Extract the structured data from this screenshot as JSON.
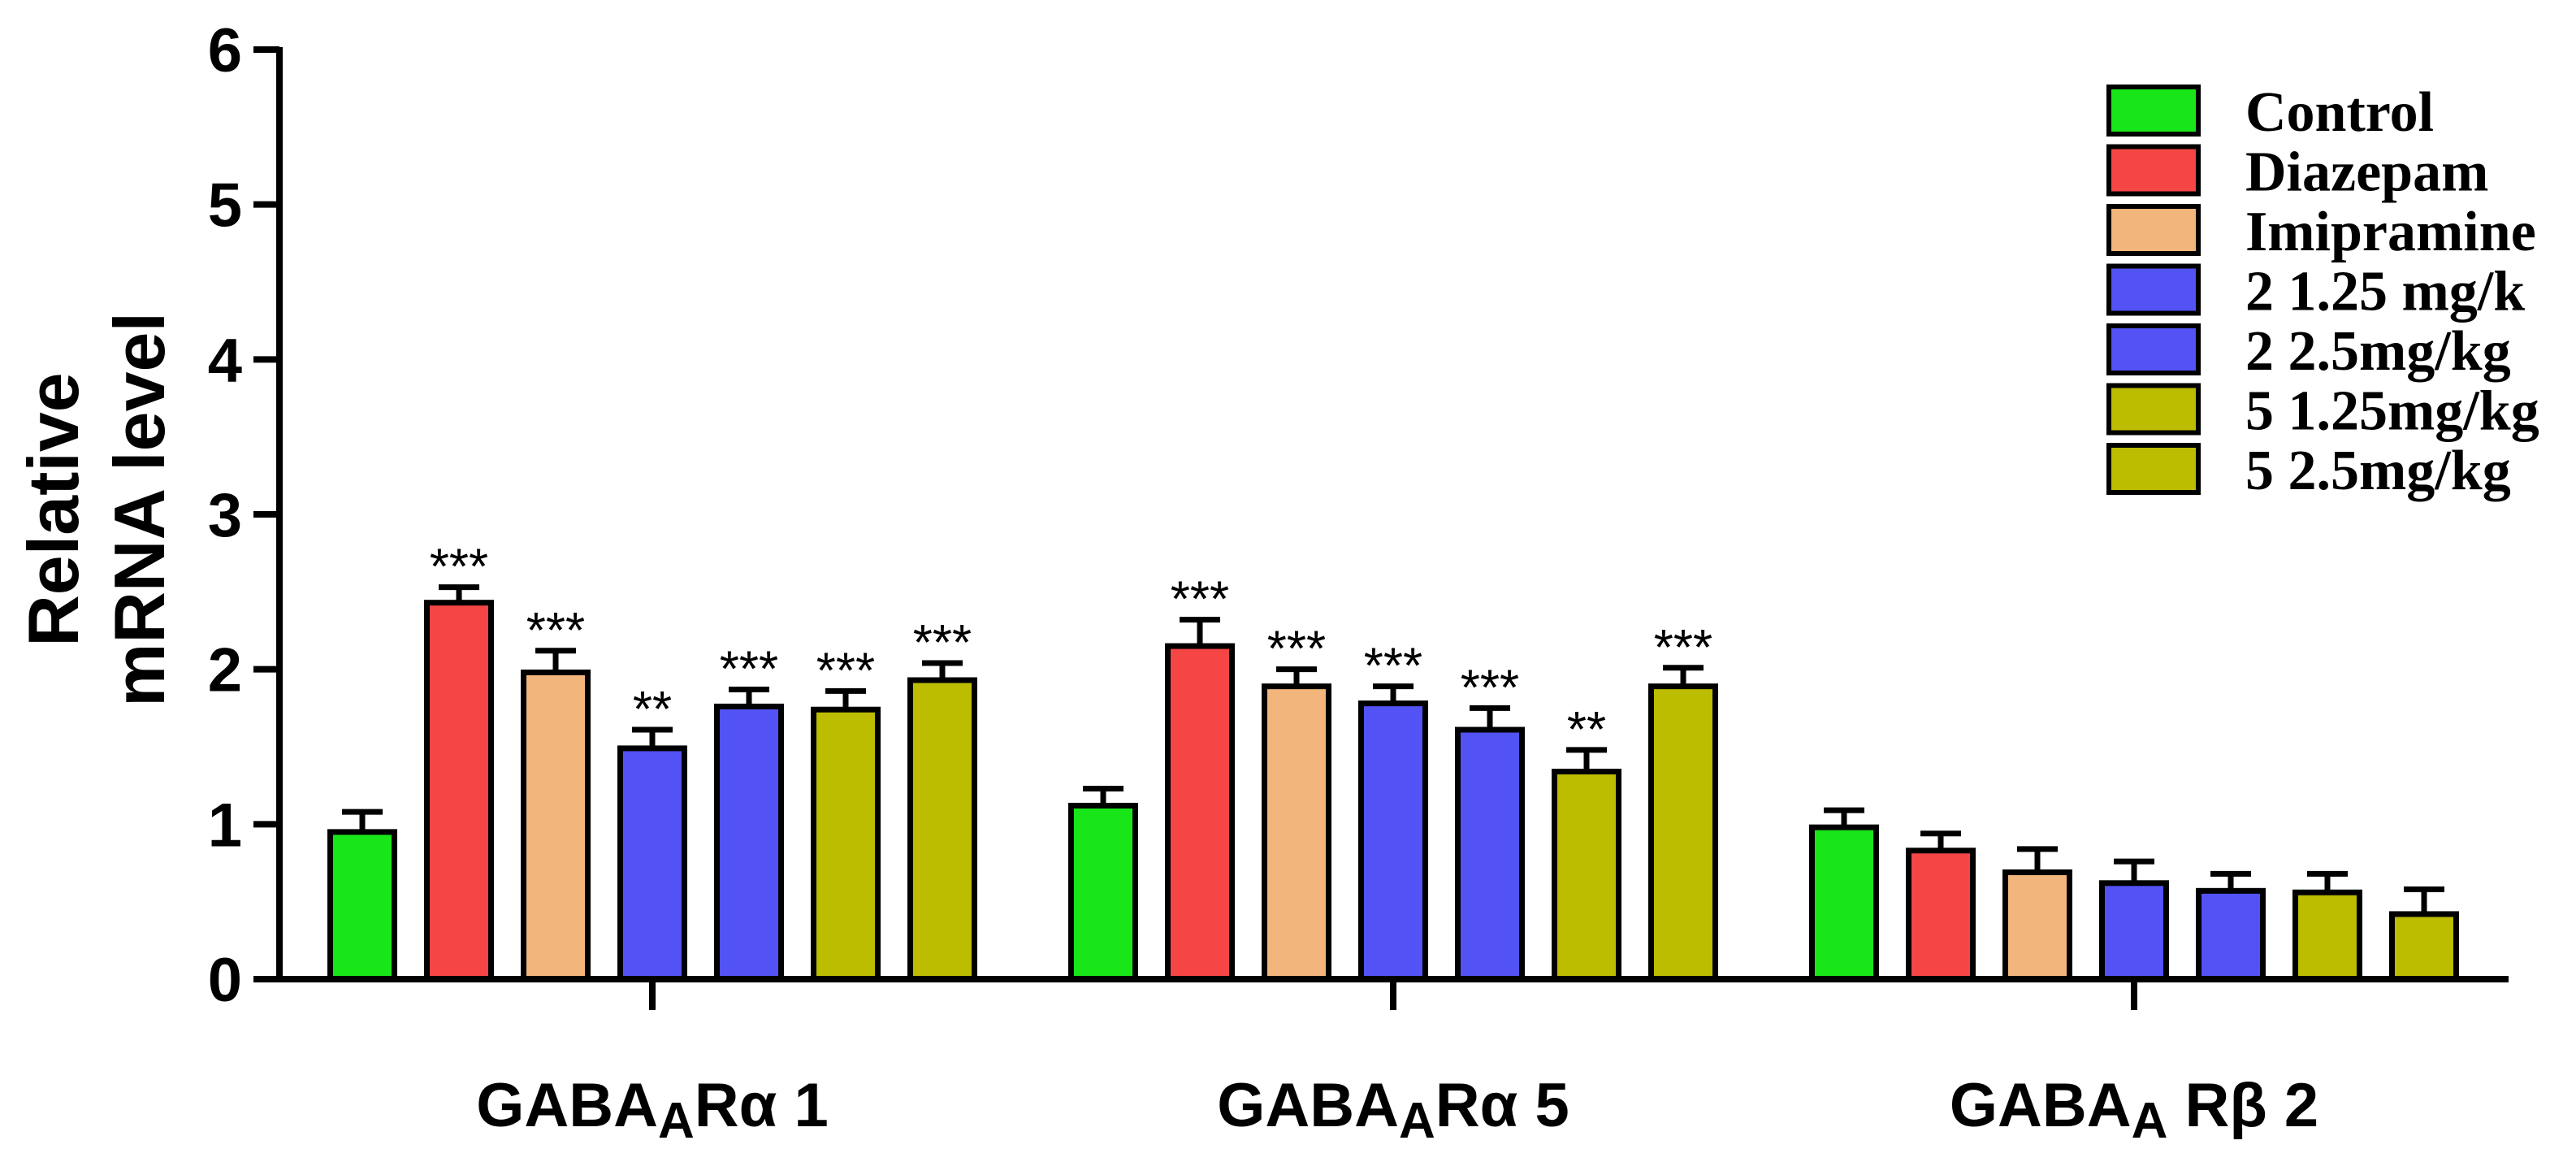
{
  "chart_data": {
    "type": "bar",
    "title": "",
    "ylabel": [
      "Relative",
      "mRNA level"
    ],
    "ylim": [
      0,
      6
    ],
    "yticks": [
      0,
      1,
      2,
      3,
      4,
      5,
      6
    ],
    "categories": [
      {
        "prefix": "GABA",
        "subscript": "A",
        "suffix": "Rα 1"
      },
      {
        "prefix": "GABA",
        "subscript": "A",
        "suffix": "Rα 5"
      },
      {
        "prefix": "GABA",
        "subscript": "A",
        "suffix": " Rβ 2"
      }
    ],
    "legend_position": "top-right",
    "series": [
      {
        "name": "Control",
        "color": "#19e619",
        "values": [
          0.95,
          1.12,
          0.98
        ],
        "errors": [
          0.13,
          0.11,
          0.11
        ],
        "significance": [
          "",
          "",
          ""
        ]
      },
      {
        "name": "Diazepam",
        "color": "#f54545",
        "values": [
          2.43,
          2.15,
          0.83
        ],
        "errors": [
          0.1,
          0.17,
          0.11
        ],
        "significance": [
          "***",
          "***",
          ""
        ]
      },
      {
        "name": "Imipramine",
        "color": "#f2b57b",
        "values": [
          1.98,
          1.89,
          0.69
        ],
        "errors": [
          0.14,
          0.11,
          0.15
        ],
        "significance": [
          "***",
          "***",
          ""
        ]
      },
      {
        "name": "2 1.25 mg/k",
        "color": "#5252f5",
        "values": [
          1.49,
          1.78,
          0.62
        ],
        "errors": [
          0.12,
          0.11,
          0.14
        ],
        "significance": [
          "**",
          "***",
          ""
        ]
      },
      {
        "name": "2 2.5mg/kg",
        "color": "#5252f5",
        "values": [
          1.76,
          1.61,
          0.57
        ],
        "errors": [
          0.11,
          0.14,
          0.11
        ],
        "significance": [
          "***",
          "***",
          ""
        ]
      },
      {
        "name": "5 1.25mg/kg",
        "color": "#bcbc00",
        "values": [
          1.74,
          1.34,
          0.56
        ],
        "errors": [
          0.12,
          0.14,
          0.12
        ],
        "significance": [
          "***",
          "**",
          ""
        ]
      },
      {
        "name": "5 2.5mg/kg",
        "color": "#bcbc00",
        "values": [
          1.93,
          1.89,
          0.42
        ],
        "errors": [
          0.11,
          0.12,
          0.16
        ],
        "significance": [
          "***",
          "***",
          ""
        ]
      }
    ]
  }
}
